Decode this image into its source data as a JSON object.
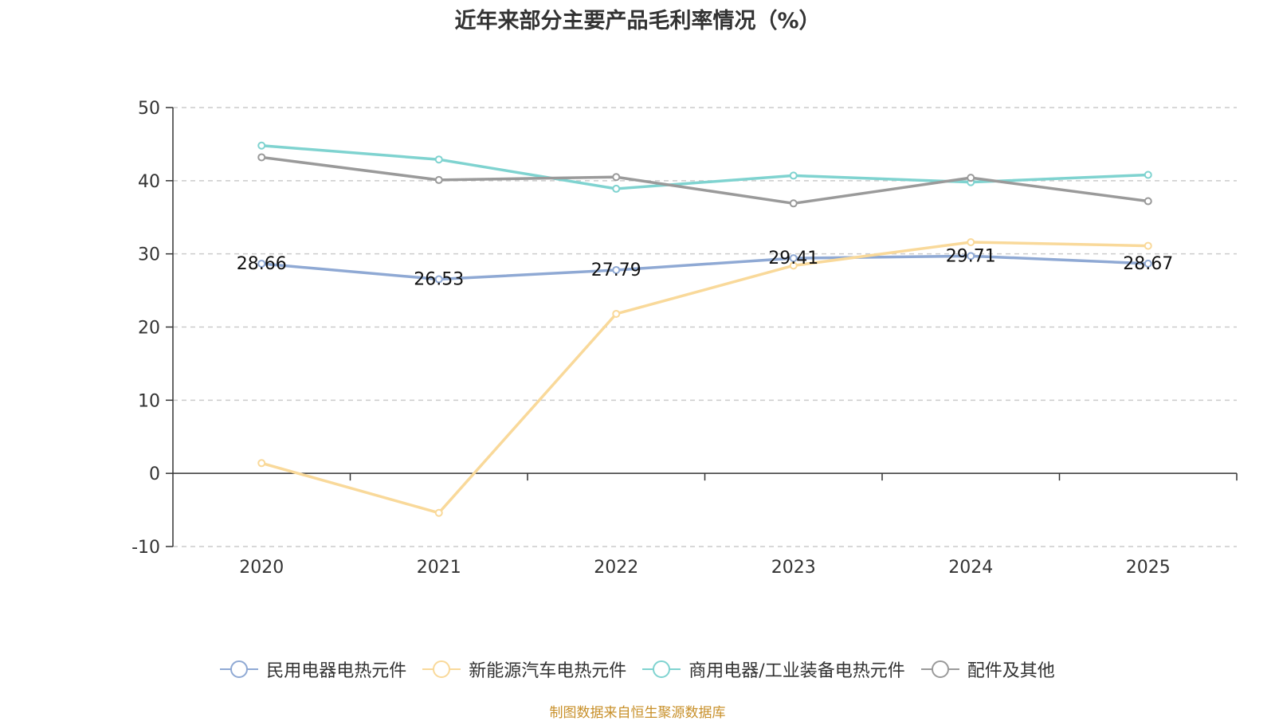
{
  "chart_data": {
    "type": "line",
    "title": "近年来部分主要产品毛利率情况（%）",
    "categories": [
      "2020",
      "2021",
      "2022",
      "2023",
      "2024",
      "2025"
    ],
    "ylim": [
      -10,
      50
    ],
    "yticks": [
      -10,
      0,
      10,
      20,
      30,
      40,
      50
    ],
    "grid": true,
    "legend_position": "bottom",
    "series": [
      {
        "name": "民用电器电热元件",
        "color": "#8fa9d4",
        "values": [
          28.66,
          26.53,
          27.79,
          29.41,
          29.71,
          28.67
        ],
        "labels_shown": true
      },
      {
        "name": "新能源汽车电热元件",
        "color": "#f9d99a",
        "values": [
          1.4,
          -5.4,
          21.8,
          28.4,
          31.6,
          31.1
        ],
        "labels_shown": false
      },
      {
        "name": "商用电器/工业装备电热元件",
        "color": "#7fd3d0",
        "values": [
          44.8,
          42.9,
          38.9,
          40.7,
          39.8,
          40.8
        ],
        "labels_shown": false
      },
      {
        "name": "配件及其他",
        "color": "#9a9a9a",
        "values": [
          43.2,
          40.1,
          40.5,
          36.9,
          40.4,
          37.2
        ],
        "labels_shown": false
      }
    ]
  },
  "source_note": "制图数据来自恒生聚源数据库"
}
